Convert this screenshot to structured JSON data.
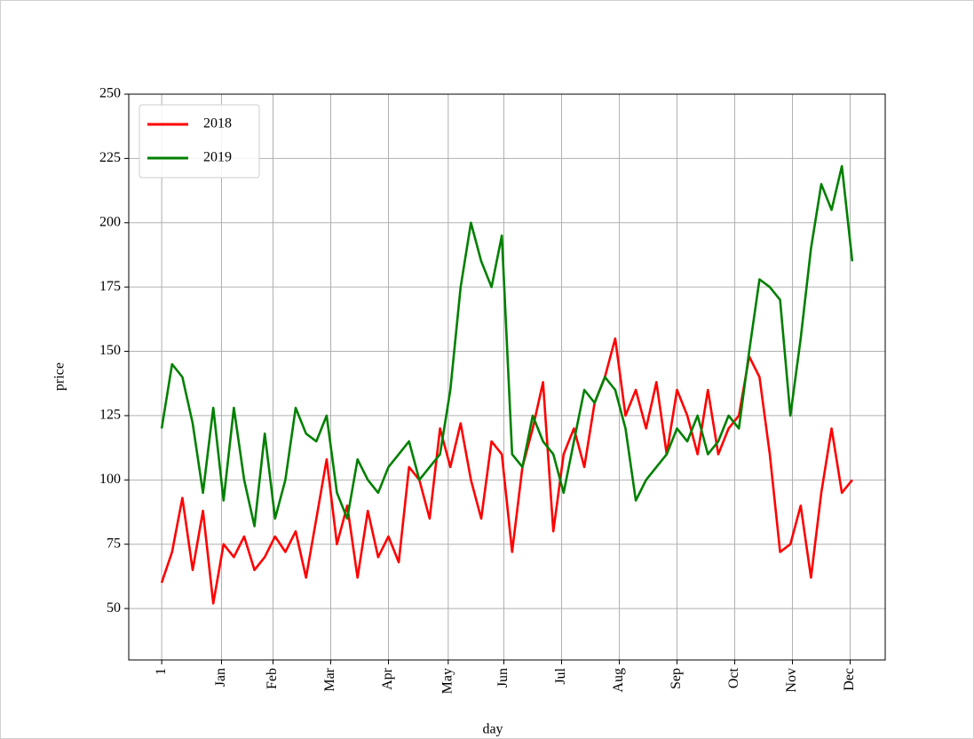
{
  "chart_data": {
    "type": "line",
    "x_label": "day",
    "y_label": "price",
    "x": [
      1,
      6,
      11,
      16,
      21,
      26,
      31,
      36,
      41,
      46,
      51,
      56,
      61,
      66,
      71,
      76,
      81,
      86,
      91,
      96,
      101,
      106,
      111,
      116,
      121,
      126,
      131,
      136,
      141,
      146,
      151,
      156,
      161,
      166,
      171,
      176,
      181,
      186,
      191,
      196,
      201,
      206,
      211,
      216,
      221,
      226,
      231,
      236,
      241,
      246,
      251,
      256,
      261,
      266,
      271,
      276,
      281,
      286,
      291,
      296,
      301,
      306,
      311,
      316,
      321,
      326,
      331,
      336
    ],
    "series": [
      {
        "name": "2018",
        "color": "#ff0000",
        "values": [
          60,
          72,
          93,
          65,
          88,
          52,
          75,
          70,
          78,
          65,
          70,
          78,
          72,
          80,
          62,
          85,
          108,
          75,
          90,
          62,
          88,
          70,
          78,
          68,
          105,
          100,
          85,
          120,
          105,
          122,
          100,
          85,
          115,
          110,
          72,
          105,
          120,
          138,
          80,
          110,
          120,
          105,
          130,
          140,
          155,
          125,
          135,
          120,
          138,
          110,
          135,
          125,
          110,
          135,
          110,
          120,
          125,
          148,
          140,
          110,
          72,
          75,
          90,
          62,
          95,
          120,
          95,
          100
        ]
      },
      {
        "name": "2019",
        "color": "#008000",
        "values": [
          120,
          145,
          140,
          122,
          95,
          128,
          92,
          128,
          100,
          82,
          118,
          85,
          100,
          128,
          118,
          115,
          125,
          95,
          85,
          108,
          100,
          95,
          105,
          110,
          115,
          100,
          105,
          110,
          135,
          175,
          200,
          185,
          175,
          195,
          110,
          105,
          125,
          115,
          110,
          95,
          115,
          135,
          130,
          140,
          135,
          120,
          92,
          100,
          105,
          110,
          120,
          115,
          125,
          110,
          115,
          125,
          120,
          150,
          178,
          175,
          170,
          125,
          155,
          190,
          215,
          205,
          222,
          185
        ]
      }
    ],
    "xlim": [
      -15,
      352
    ],
    "xticks": [
      {
        "value": 1,
        "label": "1"
      },
      {
        "value": 30,
        "label": "Jan"
      },
      {
        "value": 55,
        "label": "Feb"
      },
      {
        "value": 83,
        "label": "Mar"
      },
      {
        "value": 111,
        "label": "Apr"
      },
      {
        "value": 140,
        "label": "May"
      },
      {
        "value": 167,
        "label": "Jun"
      },
      {
        "value": 195,
        "label": "Jul"
      },
      {
        "value": 223,
        "label": "Aug"
      },
      {
        "value": 251,
        "label": "Sep"
      },
      {
        "value": 279,
        "label": "Oct"
      },
      {
        "value": 307,
        "label": "Nov"
      },
      {
        "value": 335,
        "label": "Dec"
      }
    ],
    "ylim": [
      30,
      250
    ],
    "yticks": [
      50,
      75,
      100,
      125,
      150,
      175,
      200,
      225,
      250
    ],
    "grid": true,
    "legend": "upper left"
  }
}
